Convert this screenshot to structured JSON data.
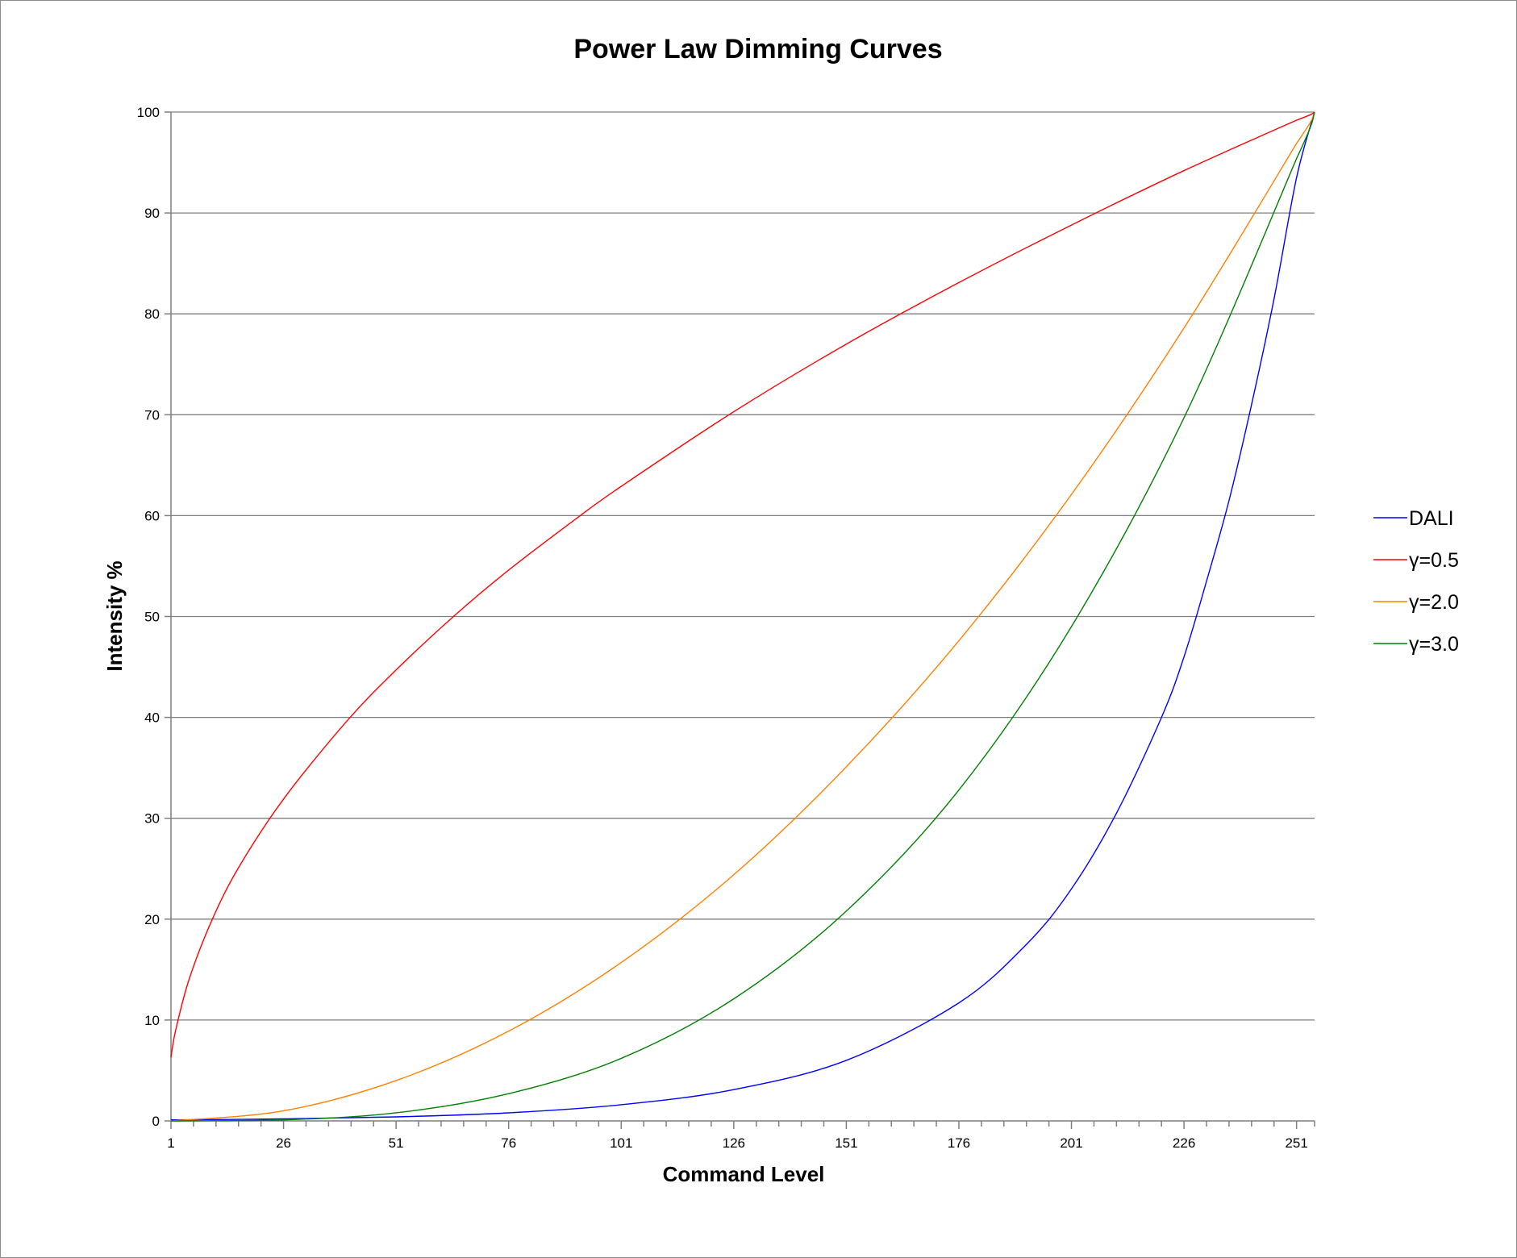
{
  "chart_data": {
    "type": "line",
    "title": "Power Law Dimming Curves",
    "xlabel": "Command Level",
    "ylabel": "Intensity %",
    "xlim": [
      1,
      255
    ],
    "ylim": [
      0,
      100
    ],
    "x_ticks": [
      1,
      26,
      51,
      76,
      101,
      126,
      151,
      176,
      201,
      226,
      251
    ],
    "y_ticks": [
      0,
      10,
      20,
      30,
      40,
      50,
      60,
      70,
      80,
      90,
      100
    ],
    "grid": "horizontal",
    "legend_position": "right",
    "series": [
      {
        "name": "DALI",
        "color": "#0000ff",
        "x": [
          1,
          26,
          51,
          76,
          101,
          126,
          151,
          176,
          191,
          201,
          211,
          221,
          226,
          231,
          236,
          241,
          246,
          251,
          255
        ],
        "y": [
          0.1,
          0.2,
          0.4,
          0.8,
          1.6,
          3.1,
          6.0,
          11.7,
          17.5,
          23.0,
          30.5,
          40.0,
          46.0,
          53.5,
          61.5,
          71.0,
          81.5,
          93.5,
          100
        ]
      },
      {
        "name": "γ=0.5",
        "color": "#ff0000",
        "x": [
          1,
          2,
          5,
          10,
          16,
          26,
          40,
          51,
          64,
          76,
          91,
          101,
          126,
          151,
          176,
          201,
          226,
          251,
          255
        ],
        "y": [
          6.3,
          8.9,
          14.0,
          19.8,
          25.1,
          31.9,
          39.6,
          44.7,
          50.1,
          54.6,
          59.7,
          62.9,
          70.3,
          77.0,
          83.1,
          88.8,
          94.2,
          99.2,
          100
        ]
      },
      {
        "name": "γ=2.0",
        "color": "#ff8000",
        "x": [
          1,
          26,
          51,
          76,
          101,
          126,
          151,
          176,
          201,
          226,
          251,
          255
        ],
        "y": [
          0.0,
          1.0,
          4.0,
          8.9,
          15.7,
          24.4,
          35.1,
          47.6,
          62.1,
          78.6,
          96.9,
          100
        ]
      },
      {
        "name": "γ=3.0",
        "color": "#008000",
        "x": [
          1,
          26,
          51,
          76,
          101,
          126,
          151,
          176,
          201,
          226,
          251,
          255
        ],
        "y": [
          0.0,
          0.1,
          0.8,
          2.7,
          6.2,
          12.1,
          20.8,
          32.8,
          49.0,
          69.7,
          95.4,
          100
        ]
      }
    ]
  }
}
